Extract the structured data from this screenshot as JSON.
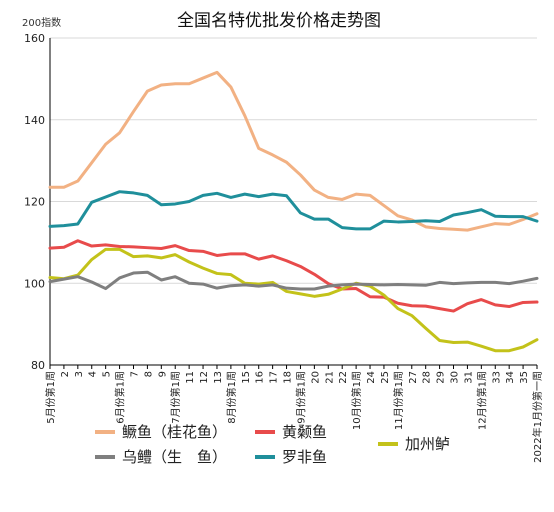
{
  "chart_data": {
    "type": "line",
    "title": "全国名特优批发价格走势图",
    "unit_label": "200指数",
    "ylim": [
      80,
      160
    ],
    "yticks": [
      80,
      100,
      120,
      140,
      160
    ],
    "grid": true,
    "legend_position": "bottom",
    "categories": [
      "5月份第1周",
      "2",
      "3",
      "4",
      "5",
      "6月份第1周",
      "7",
      "8",
      "9",
      "7月份第1周",
      "11",
      "12",
      "13",
      "8月份第1周",
      "15",
      "16",
      "17",
      "18",
      "9月份第1周",
      "20",
      "21",
      "22",
      "10月份第1周",
      "24",
      "25",
      "11月份第1周",
      "27",
      "28",
      "29",
      "30",
      "31",
      "12月份第1周",
      "33",
      "34",
      "35",
      "2022年1月份第一周"
    ],
    "series": [
      {
        "name": "鳜鱼（桂花鱼）",
        "color": "#f2b183",
        "values": [
          123.5,
          123.5,
          125,
          129.5,
          134,
          136.8,
          142,
          147,
          148.5,
          148.8,
          148.8,
          150.2,
          151.6,
          148,
          141,
          133,
          131.4,
          129.6,
          126.5,
          122.8,
          121,
          120.5,
          121.8,
          121.5,
          119,
          116.5,
          115.5,
          113.8,
          113.4,
          113.2,
          113,
          113.8,
          114.6,
          114.4,
          115.6,
          117
        ]
      },
      {
        "name": "黄颡鱼",
        "color": "#e84b4b",
        "values": [
          108.6,
          108.8,
          110.4,
          109.1,
          109.4,
          109,
          108.9,
          108.7,
          108.5,
          109.2,
          108,
          107.8,
          106.8,
          107.2,
          107.2,
          105.9,
          106.7,
          105.5,
          104.1,
          102.2,
          99.9,
          98.6,
          98.7,
          96.7,
          96.6,
          95.1,
          94.5,
          94.4,
          93.8,
          93.2,
          95,
          96,
          94.7,
          94.3,
          95.3,
          95.4
        ]
      },
      {
        "name": "加州鲈",
        "color": "#c3c21a",
        "values": [
          101.4,
          101.1,
          102,
          105.8,
          108.3,
          108.3,
          106.5,
          106.7,
          106.2,
          107,
          105.2,
          103.7,
          102.4,
          102.1,
          100,
          99.8,
          100.2,
          98,
          97.4,
          96.8,
          97.3,
          98.6,
          100,
          99.3,
          97.1,
          93.8,
          92.1,
          89,
          86,
          85.5,
          85.6,
          84.6,
          83.5,
          83.5,
          84.4,
          86.2
        ]
      },
      {
        "name": "乌鳢（生　鱼）",
        "color": "#7f7f7f",
        "values": [
          100.4,
          101,
          101.6,
          100.3,
          98.7,
          101.3,
          102.5,
          102.7,
          100.8,
          101.6,
          100,
          99.8,
          98.8,
          99.4,
          99.6,
          99.3,
          99.6,
          98.8,
          98.6,
          98.6,
          99.3,
          99.6,
          99.8,
          99.7,
          99.6,
          99.7,
          99.6,
          99.5,
          100.2,
          99.9,
          100.1,
          100.2,
          100.2,
          99.9,
          100.5,
          101.2
        ]
      },
      {
        "name": "罗非鱼",
        "color": "#1f8f9b",
        "values": [
          113.9,
          114.1,
          114.5,
          119.8,
          121.1,
          122.4,
          122.1,
          121.5,
          119.2,
          119.4,
          120,
          121.5,
          122,
          121,
          121.8,
          121.2,
          121.8,
          121.4,
          117.2,
          115.7,
          115.7,
          113.6,
          113.3,
          113.3,
          115.2,
          115,
          115.1,
          115.3,
          115.1,
          116.7,
          117.3,
          118,
          116.4,
          116.3,
          116.3,
          115.2
        ]
      }
    ]
  },
  "legend": {
    "rows": [
      [
        "鳜鱼（桂花鱼）",
        "黄颡鱼",
        "加州鲈"
      ],
      [
        "乌鳢（生　鱼）",
        "罗非鱼",
        ""
      ]
    ]
  }
}
